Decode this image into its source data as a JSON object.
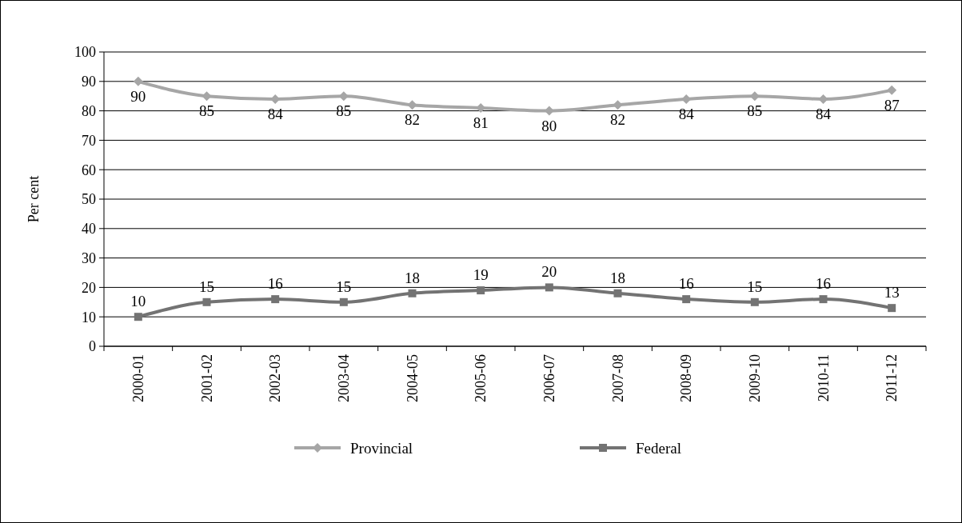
{
  "chart_data": {
    "type": "line",
    "ylabel": "Per cent",
    "categories": [
      "2000-01",
      "2001-02",
      "2002-03",
      "2003-04",
      "2004-05",
      "2005-06",
      "2006-07",
      "2007-08",
      "2008-09",
      "2009-10",
      "2010-11",
      "2011-12"
    ],
    "series": [
      {
        "name": "Provincial",
        "color": "#a6a6a6",
        "marker": "diamond",
        "values": [
          90,
          85,
          84,
          85,
          82,
          81,
          80,
          82,
          84,
          85,
          84,
          87
        ]
      },
      {
        "name": "Federal",
        "color": "#737373",
        "marker": "square",
        "values": [
          10,
          15,
          16,
          15,
          18,
          19,
          20,
          18,
          16,
          15,
          16,
          13
        ]
      }
    ],
    "ylim": [
      0,
      100
    ],
    "yticks": [
      0,
      10,
      20,
      30,
      40,
      50,
      60,
      70,
      80,
      90,
      100
    ],
    "grid": "y",
    "legend": "bottom",
    "data_labels": true
  }
}
